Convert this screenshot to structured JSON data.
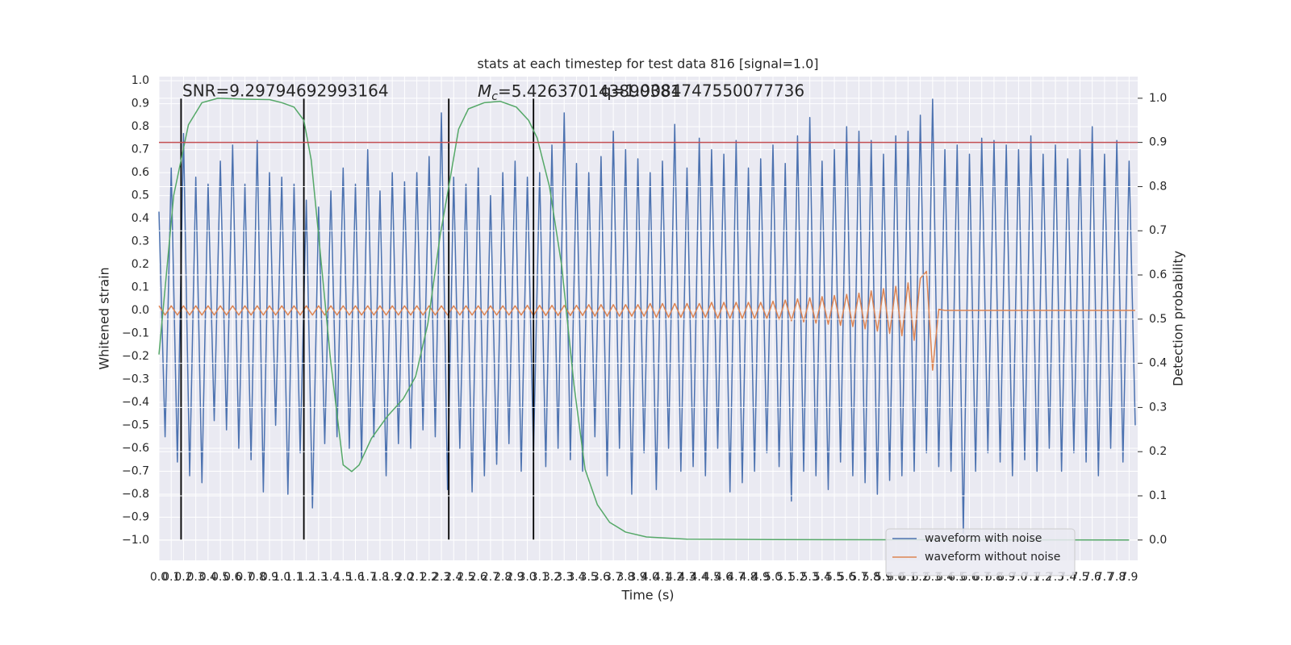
{
  "chart_data": {
    "type": "line",
    "title": "stats at each timestep for test data 816 [signal=1.0]",
    "xlabel": "Time (s)",
    "ylabel": "Whitened strain",
    "y2label": "Detection probability",
    "annotations": [
      {
        "text": "SNR=9.29794692993164"
      },
      {
        "symbol": "M",
        "subscript": "c",
        "text": "=5.426370143890381"
      },
      {
        "text": "q=1.9084747550077736"
      }
    ],
    "xlim": [
      0,
      7.97
    ],
    "ylim": [
      -1.088,
      1.018
    ],
    "y2lim": [
      -0.046,
      1.049
    ],
    "grid": true,
    "legend": "lower right",
    "xticks": [
      {
        "value": 0,
        "label": "0.0"
      },
      0.1,
      0.2,
      0.3,
      0.4,
      0.5,
      0.6,
      0.7,
      0.8,
      0.9,
      {
        "value": 1,
        "label": "1.0"
      },
      1.1,
      1.2,
      1.3,
      1.4,
      1.5,
      1.6,
      1.7,
      1.8,
      1.9,
      {
        "value": 2,
        "label": "2.0"
      },
      2.1,
      2.2,
      2.3,
      2.4,
      2.5,
      2.6,
      2.7,
      2.8,
      2.9,
      {
        "value": 3,
        "label": "3.0"
      },
      3.1,
      3.2,
      3.3,
      3.4,
      3.5,
      3.6,
      3.7,
      3.8,
      3.9,
      {
        "value": 4,
        "label": "4.0"
      },
      4.1,
      4.2,
      4.3,
      4.4,
      4.5,
      4.6,
      4.7,
      4.8,
      4.9,
      {
        "value": 5,
        "label": "5.0"
      },
      5.1,
      5.2,
      5.3,
      5.4,
      5.5,
      5.6,
      5.7,
      5.8,
      5.9,
      {
        "value": 6,
        "label": "6.0"
      },
      6.1,
      6.2,
      6.3,
      6.4,
      6.5,
      6.6,
      6.7,
      6.8,
      6.9,
      {
        "value": 7,
        "label": "7.0"
      },
      7.1,
      7.2,
      7.3,
      7.4,
      7.5,
      7.6,
      7.7,
      7.8,
      7.9
    ],
    "yticks": [
      {
        "value": -1,
        "label": "−1.0"
      },
      {
        "value": -0.9,
        "label": "−0.9"
      },
      {
        "value": -0.8,
        "label": "−0.8"
      },
      {
        "value": -0.7,
        "label": "−0.7"
      },
      {
        "value": -0.6,
        "label": "−0.6"
      },
      {
        "value": -0.5,
        "label": "−0.5"
      },
      {
        "value": -0.4,
        "label": "−0.4"
      },
      {
        "value": -0.3,
        "label": "−0.3"
      },
      {
        "value": -0.2,
        "label": "−0.2"
      },
      {
        "value": -0.1,
        "label": "−0.1"
      },
      {
        "value": 0,
        "label": "0.0"
      },
      0.1,
      0.2,
      0.3,
      0.4,
      0.5,
      0.6,
      0.7,
      0.8,
      0.9,
      {
        "value": 1,
        "label": "1.0"
      }
    ],
    "y2ticks": [
      {
        "value": 0,
        "label": "0.0"
      },
      0.1,
      0.2,
      0.3,
      0.4,
      0.5,
      0.6,
      0.7,
      0.8,
      0.9,
      {
        "value": 1,
        "label": "1.0"
      }
    ],
    "threshold": 0.9,
    "threshold_color": "#c44e52",
    "vlines": [
      0.18,
      1.18,
      2.36,
      3.05
    ],
    "vlines_color": "#000000",
    "x": [
      0,
      0.05,
      0.1,
      0.15,
      0.2,
      0.25,
      0.3,
      0.35,
      0.4,
      0.45,
      0.5,
      0.55,
      0.6,
      0.65,
      0.7,
      0.75,
      0.8,
      0.85,
      0.9,
      0.95,
      1,
      1.05,
      1.1,
      1.15,
      1.2,
      1.25,
      1.3,
      1.35,
      1.4,
      1.45,
      1.5,
      1.55,
      1.6,
      1.65,
      1.7,
      1.75,
      1.8,
      1.85,
      1.9,
      1.95,
      2,
      2.05,
      2.1,
      2.15,
      2.2,
      2.25,
      2.3,
      2.35,
      2.4,
      2.45,
      2.5,
      2.55,
      2.6,
      2.65,
      2.7,
      2.75,
      2.8,
      2.85,
      2.9,
      2.95,
      3,
      3.05,
      3.1,
      3.15,
      3.2,
      3.25,
      3.3,
      3.35,
      3.4,
      3.45,
      3.5,
      3.55,
      3.6,
      3.65,
      3.7,
      3.75,
      3.8,
      3.85,
      3.9,
      3.95,
      4,
      4.05,
      4.1,
      4.15,
      4.2,
      4.25,
      4.3,
      4.35,
      4.4,
      4.45,
      4.5,
      4.55,
      4.6,
      4.65,
      4.7,
      4.75,
      4.8,
      4.85,
      4.9,
      4.95,
      5,
      5.05,
      5.1,
      5.15,
      5.2,
      5.25,
      5.3,
      5.35,
      5.4,
      5.45,
      5.5,
      5.55,
      5.6,
      5.65,
      5.7,
      5.75,
      5.8,
      5.85,
      5.9,
      5.95,
      6,
      6.05,
      6.1,
      6.15,
      6.2,
      6.25,
      6.3,
      6.35,
      6.4,
      6.45,
      6.5,
      6.55,
      6.6,
      6.65,
      6.7,
      6.75,
      6.8,
      6.85,
      6.9,
      6.95,
      7,
      7.05,
      7.1,
      7.15,
      7.2,
      7.25,
      7.3,
      7.35,
      7.4,
      7.45,
      7.5,
      7.55,
      7.6,
      7.65,
      7.7,
      7.75,
      7.8,
      7.85,
      7.9,
      7.95
    ],
    "series": [
      {
        "name": "waveform with noise",
        "color": "#4c72b0",
        "values": [
          0.43,
          -0.55,
          0.62,
          -0.66,
          0.77,
          -0.72,
          0.58,
          -0.75,
          0.55,
          -0.48,
          0.65,
          -0.52,
          0.72,
          -0.6,
          0.55,
          -0.65,
          0.74,
          -0.79,
          0.6,
          -0.5,
          0.58,
          -0.8,
          0.55,
          -0.62,
          0.48,
          -0.86,
          0.45,
          -0.58,
          0.52,
          -0.55,
          0.62,
          -0.6,
          0.55,
          -0.65,
          0.7,
          -0.55,
          0.52,
          -0.72,
          0.6,
          -0.58,
          0.56,
          -0.6,
          0.6,
          -0.52,
          0.67,
          -0.55,
          0.86,
          -0.78,
          0.58,
          -0.6,
          0.55,
          -0.79,
          0.62,
          -0.72,
          0.5,
          -0.67,
          0.6,
          -0.58,
          0.65,
          -0.7,
          0.58,
          -0.62,
          0.6,
          -0.68,
          0.72,
          -0.6,
          0.86,
          -0.65,
          0.64,
          -0.7,
          0.6,
          -0.55,
          0.67,
          -0.72,
          0.78,
          -0.6,
          0.7,
          -0.8,
          0.66,
          -0.62,
          0.6,
          -0.78,
          0.65,
          -0.6,
          0.81,
          -0.7,
          0.62,
          -0.68,
          0.75,
          -0.72,
          0.7,
          -0.6,
          0.68,
          -0.79,
          0.74,
          -0.75,
          0.62,
          -0.7,
          0.66,
          -0.62,
          0.72,
          -0.68,
          0.64,
          -0.83,
          0.76,
          -0.7,
          0.84,
          -0.72,
          0.65,
          -0.78,
          0.7,
          -0.66,
          0.8,
          -0.72,
          0.78,
          -0.75,
          0.74,
          -0.8,
          0.68,
          -0.74,
          0.76,
          -0.72,
          0.78,
          -0.7,
          0.85,
          -0.62,
          0.92,
          -0.68,
          0.7,
          -0.7,
          0.72,
          -0.97,
          0.68,
          -0.7,
          0.75,
          -0.62,
          0.74,
          -0.66,
          0.72,
          -0.72,
          0.7,
          -0.65,
          0.76,
          -0.7,
          0.68,
          -0.6,
          0.72,
          -0.7,
          0.66,
          -0.62,
          0.7,
          -0.66,
          0.8,
          -0.72,
          0.68,
          -0.6,
          0.74,
          -0.66,
          0.65,
          -0.5
        ]
      },
      {
        "name": "waveform without noise",
        "color": "#dd8452",
        "values": [
          0.02,
          -0.02,
          0.02,
          -0.02,
          0.02,
          -0.02,
          0.02,
          -0.02,
          0.02,
          -0.02,
          0.02,
          -0.02,
          0.02,
          -0.02,
          0.02,
          -0.02,
          0.02,
          -0.02,
          0.02,
          -0.02,
          0.02,
          -0.02,
          0.02,
          -0.02,
          0.02,
          -0.02,
          0.02,
          -0.02,
          0.02,
          -0.02,
          0.02,
          -0.02,
          0.02,
          -0.02,
          0.02,
          -0.02,
          0.02,
          -0.02,
          0.02,
          -0.02,
          0.02,
          -0.02,
          0.02,
          -0.02,
          0.02,
          -0.02,
          0.02,
          -0.02,
          0.02,
          -0.02,
          0.02,
          -0.02,
          0.02,
          -0.02,
          0.02,
          -0.02,
          0.02,
          -0.02,
          0.02,
          -0.02,
          0.022,
          -0.022,
          0.022,
          -0.022,
          0.022,
          -0.022,
          0.022,
          -0.022,
          0.022,
          -0.022,
          0.025,
          -0.025,
          0.025,
          -0.025,
          0.025,
          -0.025,
          0.025,
          -0.025,
          0.025,
          -0.025,
          0.03,
          -0.03,
          0.03,
          -0.03,
          0.03,
          -0.03,
          0.03,
          -0.03,
          0.03,
          -0.03,
          0.035,
          -0.035,
          0.035,
          -0.035,
          0.035,
          -0.035,
          0.035,
          -0.035,
          0.035,
          -0.035,
          0.04,
          -0.04,
          0.045,
          -0.045,
          0.05,
          -0.05,
          0.055,
          -0.055,
          0.06,
          -0.06,
          0.065,
          -0.065,
          0.07,
          -0.07,
          0.075,
          -0.08,
          0.085,
          -0.09,
          0.095,
          -0.1,
          0.105,
          -0.11,
          0.12,
          -0.13,
          0.14,
          0.17,
          -0.26,
          0.005,
          0,
          0,
          0,
          0,
          0,
          0,
          0,
          0,
          0,
          0,
          0,
          0,
          0,
          0,
          0,
          0,
          0,
          0,
          0,
          0,
          0,
          0,
          0,
          0,
          0,
          0,
          0,
          0,
          0,
          0,
          0,
          0
        ]
      },
      {
        "color": "#55a868",
        "axis": "y2",
        "x": [
          0,
          0.12,
          0.24,
          0.35,
          0.48,
          0.7,
          0.9,
          1.0,
          1.1,
          1.18,
          1.24,
          1.3,
          1.4,
          1.5,
          1.57,
          1.63,
          1.73,
          1.86,
          1.99,
          2.09,
          2.19,
          2.29,
          2.36,
          2.44,
          2.52,
          2.65,
          2.78,
          2.91,
          3.01,
          3.08,
          3.18,
          3.28,
          3.38,
          3.47,
          3.57,
          3.67,
          3.8,
          3.97,
          4.3,
          5.0,
          6.0,
          7.0,
          7.9
        ],
        "values": [
          0.42,
          0.78,
          0.94,
          0.99,
          1.0,
          0.998,
          0.997,
          0.99,
          0.98,
          0.95,
          0.86,
          0.69,
          0.4,
          0.17,
          0.155,
          0.17,
          0.23,
          0.28,
          0.32,
          0.37,
          0.49,
          0.69,
          0.8,
          0.93,
          0.976,
          0.99,
          0.993,
          0.98,
          0.95,
          0.91,
          0.8,
          0.62,
          0.35,
          0.16,
          0.08,
          0.04,
          0.018,
          0.007,
          0.002,
          0.001,
          0.0005,
          0.0002,
          0
        ]
      }
    ]
  }
}
